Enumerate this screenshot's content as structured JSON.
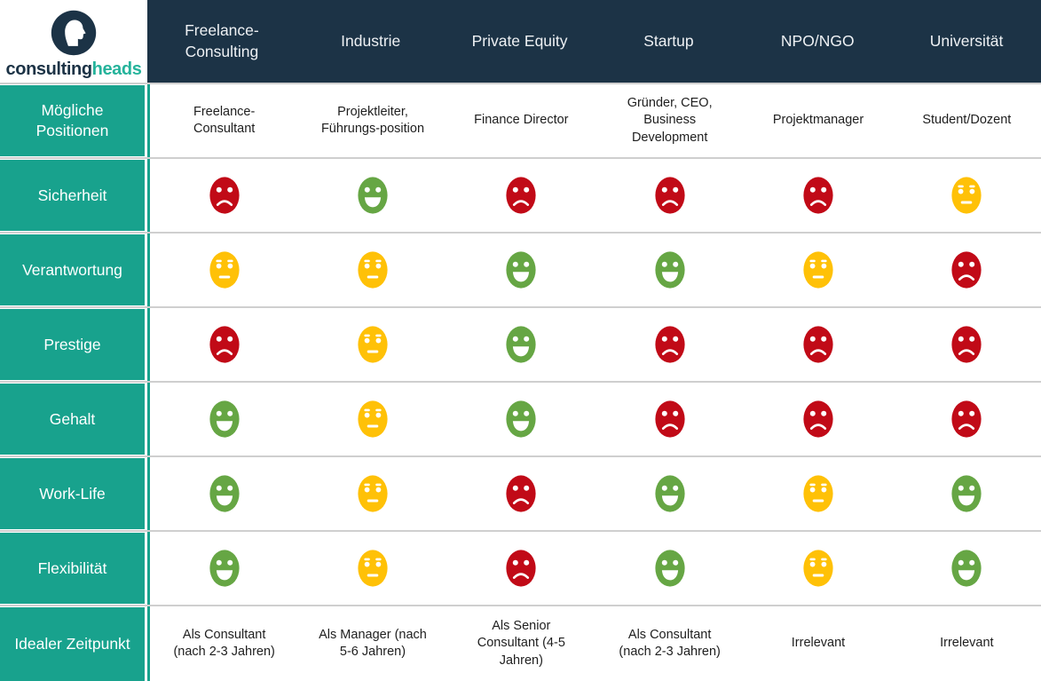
{
  "brand": {
    "wordmark_primary": "consulting",
    "wordmark_secondary": "heads",
    "logo": "head-silhouette-icon"
  },
  "chart_data": {
    "type": "table",
    "columns": [
      "Freelance-Consulting",
      "Industrie",
      "Private Equity",
      "Startup",
      "NPO/NGO",
      "Universität"
    ],
    "rows": [
      {
        "label": "Mögliche Positionen",
        "kind": "text",
        "values": [
          "Freelance-Consultant",
          "Projektleiter, Führungs-position",
          "Finance Director",
          "Gründer, CEO, Business Development",
          "Projektmanager",
          "Student/Dozent"
        ]
      },
      {
        "label": "Sicherheit",
        "kind": "rating",
        "values": [
          "negative",
          "positive",
          "negative",
          "negative",
          "negative",
          "neutral"
        ]
      },
      {
        "label": "Verantwortung",
        "kind": "rating",
        "values": [
          "neutral",
          "neutral",
          "positive",
          "positive",
          "neutral",
          "negative"
        ]
      },
      {
        "label": "Prestige",
        "kind": "rating",
        "values": [
          "negative",
          "neutral",
          "positive",
          "negative",
          "negative",
          "negative"
        ]
      },
      {
        "label": "Gehalt",
        "kind": "rating",
        "values": [
          "positive",
          "neutral",
          "positive",
          "negative",
          "negative",
          "negative"
        ]
      },
      {
        "label": "Work-Life",
        "kind": "rating",
        "values": [
          "positive",
          "neutral",
          "negative",
          "positive",
          "neutral",
          "positive"
        ]
      },
      {
        "label": "Flexibilität",
        "kind": "rating",
        "values": [
          "positive",
          "neutral",
          "negative",
          "positive",
          "neutral",
          "positive"
        ]
      },
      {
        "label": "Idealer Zeitpunkt",
        "kind": "text",
        "values": [
          "Als Consultant (nach 2-3 Jahren)",
          "Als Manager (nach 5-6 Jahren)",
          "Als Senior Consultant (4-5 Jahren)",
          "Als Consultant (nach 2-3 Jahren)",
          "Irrelevant",
          "Irrelevant"
        ]
      }
    ],
    "rating_scale": {
      "positive": {
        "icon": "happy-face-icon",
        "color": "#66A644"
      },
      "neutral": {
        "icon": "neutral-face-icon",
        "color": "#FFC107"
      },
      "negative": {
        "icon": "sad-face-icon",
        "color": "#C10A17"
      }
    }
  },
  "colors": {
    "header_bg": "#1C3346",
    "sidebar_bg": "#18A28D",
    "row_divider": "#CFCFCF",
    "brand_primary": "#1C3346",
    "brand_accent": "#25B39B",
    "text_dark": "#1E1E1E",
    "text_light": "#EEF1F4"
  }
}
